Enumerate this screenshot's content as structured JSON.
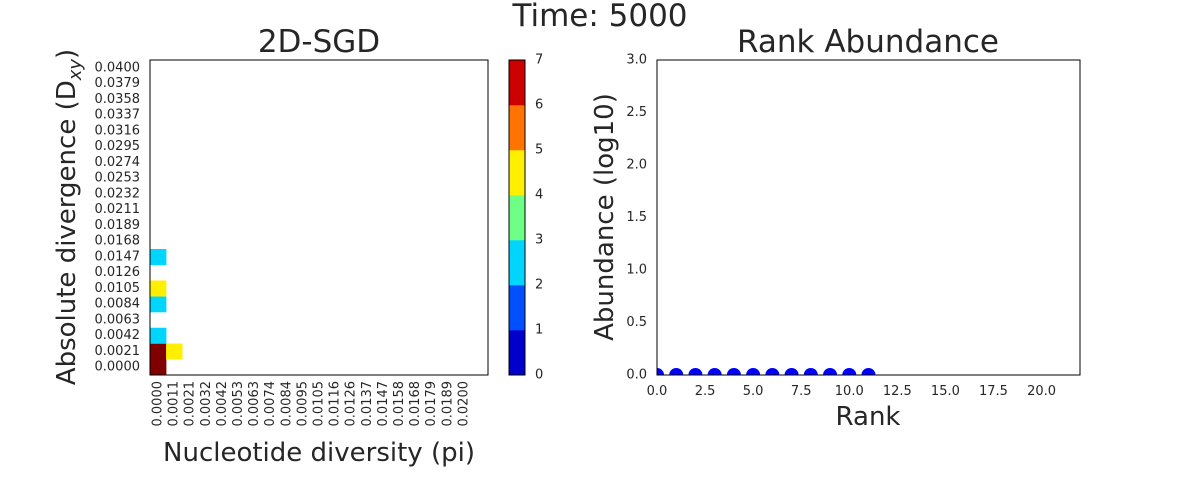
{
  "figure": {
    "suptitle": "Time: 5000"
  },
  "chart_data": [
    {
      "type": "heatmap",
      "title": "2D-SGD",
      "xlabel": "Nucleotide diversity (pi)",
      "ylabel": "Absolute divergence (D",
      "ylabel_sub": "xy",
      "ylabel_close": ")",
      "x_ticks": [
        "0.0000",
        "0.0011",
        "0.0021",
        "0.0032",
        "0.0042",
        "0.0053",
        "0.0063",
        "0.0074",
        "0.0084",
        "0.0095",
        "0.0105",
        "0.0116",
        "0.0126",
        "0.0137",
        "0.0147",
        "0.0158",
        "0.0168",
        "0.0179",
        "0.0189",
        "0.0200"
      ],
      "y_ticks": [
        "0.0000",
        "0.0021",
        "0.0042",
        "0.0063",
        "0.0084",
        "0.0105",
        "0.0126",
        "0.0147",
        "0.0168",
        "0.0189",
        "0.0211",
        "0.0232",
        "0.0253",
        "0.0274",
        "0.0295",
        "0.0316",
        "0.0337",
        "0.0358",
        "0.0379",
        "0.0400"
      ],
      "n_xbins": 21,
      "n_ybins": 20,
      "cells": [
        {
          "x": 0,
          "y": 0,
          "value": 7
        },
        {
          "x": 0,
          "y": 1,
          "value": 7
        },
        {
          "x": 1,
          "y": 1,
          "value": 4
        },
        {
          "x": 0,
          "y": 2,
          "value": 2
        },
        {
          "x": 0,
          "y": 4,
          "value": 2
        },
        {
          "x": 0,
          "y": 5,
          "value": 4
        },
        {
          "x": 0,
          "y": 7,
          "value": 2
        }
      ],
      "colorbar": {
        "range": [
          0,
          7
        ],
        "ticks": [
          "0",
          "1",
          "2",
          "3",
          "4",
          "5",
          "6",
          "7"
        ],
        "colors": [
          "#0000cc",
          "#0050ff",
          "#00d5ff",
          "#6eff86",
          "#ffef00",
          "#ff7300",
          "#cc0000"
        ],
        "overflow_color": "#800000"
      }
    },
    {
      "type": "scatter",
      "title": "Rank Abundance",
      "xlabel": "Rank",
      "ylabel": "Abundance (log10)",
      "xlim": [
        0,
        22
      ],
      "ylim": [
        0,
        3.0
      ],
      "x_ticks": [
        "0.0",
        "2.5",
        "5.0",
        "7.5",
        "10.0",
        "12.5",
        "15.0",
        "17.5",
        "20.0"
      ],
      "y_ticks": [
        "0.0",
        "0.5",
        "1.0",
        "1.5",
        "2.0",
        "2.5",
        "3.0"
      ],
      "point_color": "#0000ff",
      "x": [
        0,
        1,
        2,
        3,
        4,
        5,
        6,
        7,
        8,
        9,
        10,
        11
      ],
      "y": [
        0,
        0,
        0,
        0,
        0,
        0,
        0,
        0,
        0,
        0,
        0,
        0
      ]
    }
  ]
}
